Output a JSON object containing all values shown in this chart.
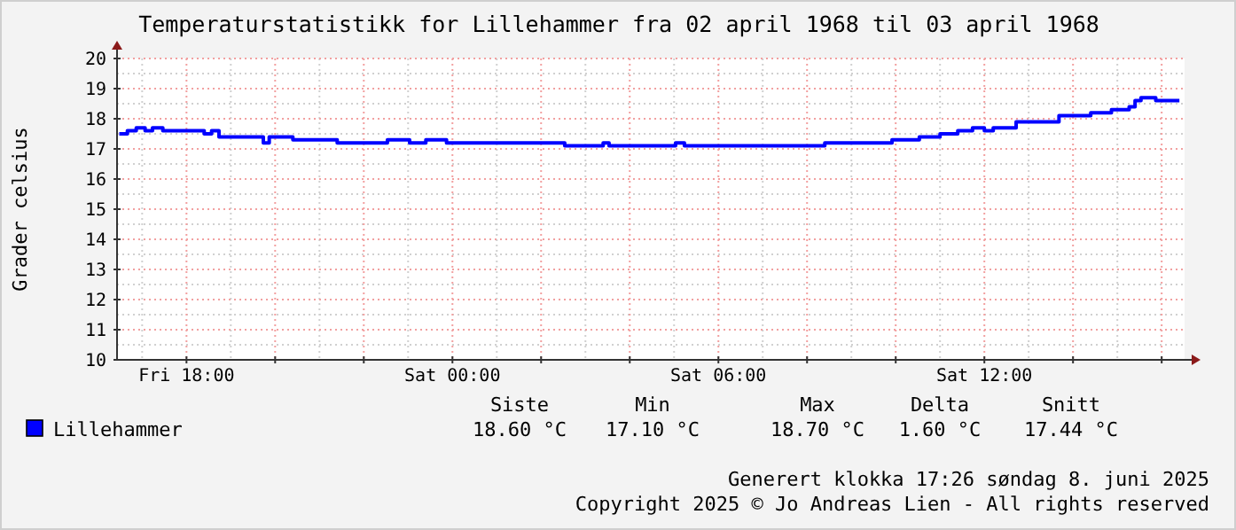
{
  "chart_data": {
    "type": "step",
    "title": "Temperaturstatistikk for Lillehammer fra 02 april 1968 til 03 april 1968",
    "ylabel": "Grader celsius",
    "x": [
      "1968-04-02T16:29",
      "1968-04-02T16:40",
      "1968-04-02T16:52",
      "1968-04-02T17:04",
      "1968-04-02T17:14",
      "1968-04-02T17:28",
      "1968-04-02T18:24",
      "1968-04-02T18:34",
      "1968-04-02T18:44",
      "1968-04-02T19:44",
      "1968-04-02T19:52",
      "1968-04-02T20:24",
      "1968-04-02T21:24",
      "1968-04-02T22:32",
      "1968-04-02T23:02",
      "1968-04-02T23:24",
      "1968-04-02T23:52",
      "1968-04-03T02:32",
      "1968-04-03T03:24",
      "1968-04-03T03:32",
      "1968-04-03T05:02",
      "1968-04-03T05:14",
      "1968-04-03T08:24",
      "1968-04-03T09:55",
      "1968-04-03T10:32",
      "1968-04-03T11:00",
      "1968-04-03T11:24",
      "1968-04-03T11:44",
      "1968-04-03T12:00",
      "1968-04-03T12:12",
      "1968-04-03T12:43",
      "1968-04-03T13:41",
      "1968-04-03T14:24",
      "1968-04-03T14:52",
      "1968-04-03T15:16",
      "1968-04-03T15:24",
      "1968-04-03T15:32",
      "1968-04-03T15:52",
      "1968-04-03T16:24"
    ],
    "series": [
      {
        "name": "Lillehammer",
        "color": "#0000ff",
        "values": [
          17.5,
          17.6,
          17.7,
          17.6,
          17.7,
          17.6,
          17.5,
          17.6,
          17.4,
          17.2,
          17.4,
          17.3,
          17.2,
          17.3,
          17.2,
          17.3,
          17.2,
          17.1,
          17.2,
          17.1,
          17.2,
          17.1,
          17.2,
          17.3,
          17.4,
          17.5,
          17.6,
          17.7,
          17.6,
          17.7,
          17.9,
          18.1,
          18.2,
          18.3,
          18.4,
          18.6,
          18.7,
          18.6,
          18.6
        ]
      }
    ],
    "xlim": [
      "1968-04-02T16:26",
      "1968-04-03T16:31"
    ],
    "xticks": [
      {
        "value": "1968-04-02T18:00",
        "label": "Fri 18:00"
      },
      {
        "value": "1968-04-02T20:00",
        "label": null
      },
      {
        "value": "1968-04-02T22:00",
        "label": null
      },
      {
        "value": "1968-04-03T00:00",
        "label": "Sat 00:00"
      },
      {
        "value": "1968-04-03T02:00",
        "label": null
      },
      {
        "value": "1968-04-03T04:00",
        "label": null
      },
      {
        "value": "1968-04-03T06:00",
        "label": "Sat 06:00"
      },
      {
        "value": "1968-04-03T08:00",
        "label": null
      },
      {
        "value": "1968-04-03T10:00",
        "label": null
      },
      {
        "value": "1968-04-03T12:00",
        "label": "Sat 12:00"
      },
      {
        "value": "1968-04-03T14:00",
        "label": null
      },
      {
        "value": "1968-04-03T16:00",
        "label": null
      }
    ],
    "ylim": [
      10,
      20
    ],
    "yticks": [
      10,
      11,
      12,
      13,
      14,
      15,
      16,
      17,
      18,
      19,
      20
    ],
    "grid": true,
    "legend": "bottom left",
    "annotations": [
      "Siste",
      "Min",
      "Max",
      "Delta",
      "Snitt",
      "18.60 °C",
      "17.10 °C",
      "18.70 °C",
      "1.60 °C",
      "17.44 °C",
      "Generert klokka 17:26 søndag 8. juni 2025",
      "Copyright 2025 © Jo Andreas Lien - All rights reserved"
    ]
  }
}
